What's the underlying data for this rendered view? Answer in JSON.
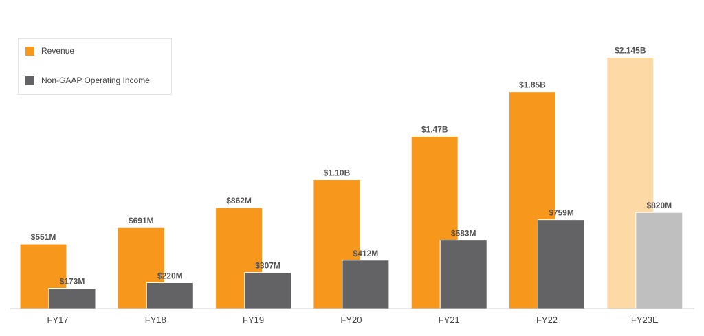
{
  "chart_data": {
    "type": "bar",
    "title": "",
    "xlabel": "",
    "ylabel": "",
    "categories": [
      "FY17",
      "FY18",
      "FY19",
      "FY20",
      "FY21",
      "FY22",
      "FY23E"
    ],
    "estimate_category": "FY23E",
    "ylim": [
      0,
      2300
    ],
    "grid": false,
    "legend_position": "top-left",
    "series": [
      {
        "name": "Revenue",
        "color": "#F7981D",
        "estimate_color": "#FDD9A5",
        "values": [
          551,
          691,
          862,
          1100,
          1470,
          1850,
          2145
        ],
        "labels": [
          "$551M",
          "$691M",
          "$862M",
          "$1.10B",
          "$1.47B",
          "$1.85B",
          "$2.145B"
        ]
      },
      {
        "name": "Non-GAAP Operating Income",
        "color": "#636366",
        "estimate_color": "#BFBFBF",
        "values": [
          173,
          220,
          307,
          412,
          583,
          759,
          820
        ],
        "labels": [
          "$173M",
          "$220M",
          "$307M",
          "$412M",
          "$583M",
          "$759M",
          "$820M"
        ]
      }
    ]
  }
}
